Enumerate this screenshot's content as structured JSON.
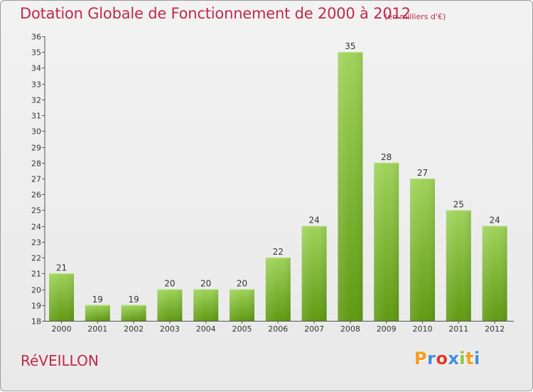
{
  "title": "Dotation Globale de Fonctionnement de 2000 à 2012",
  "subtitle": "(en milliers d'€)",
  "commune": "RéVEILLON",
  "logo": "Proxiti",
  "colors": {
    "title": "#c0294b",
    "bar_top": "#9fd35a",
    "bar_bottom": "#5f9a12",
    "logo": [
      "#f59c1a",
      "#3f8fd8",
      "#e03a2b",
      "#3f8fd8",
      "#8dc63f",
      "#f59c1a",
      "#3f8fd8"
    ]
  },
  "chart_data": {
    "type": "bar",
    "categories": [
      "2000",
      "2001",
      "2002",
      "2003",
      "2004",
      "2005",
      "2006",
      "2007",
      "2008",
      "2009",
      "2010",
      "2011",
      "2012"
    ],
    "values": [
      21,
      19,
      19,
      20,
      20,
      20,
      22,
      24,
      35,
      28,
      27,
      25,
      24
    ],
    "ylim": [
      18,
      36
    ],
    "yticks": [
      18,
      19,
      20,
      21,
      22,
      23,
      24,
      25,
      26,
      27,
      28,
      29,
      30,
      31,
      32,
      33,
      34,
      35,
      36
    ],
    "grid": false,
    "data_labels": true
  }
}
